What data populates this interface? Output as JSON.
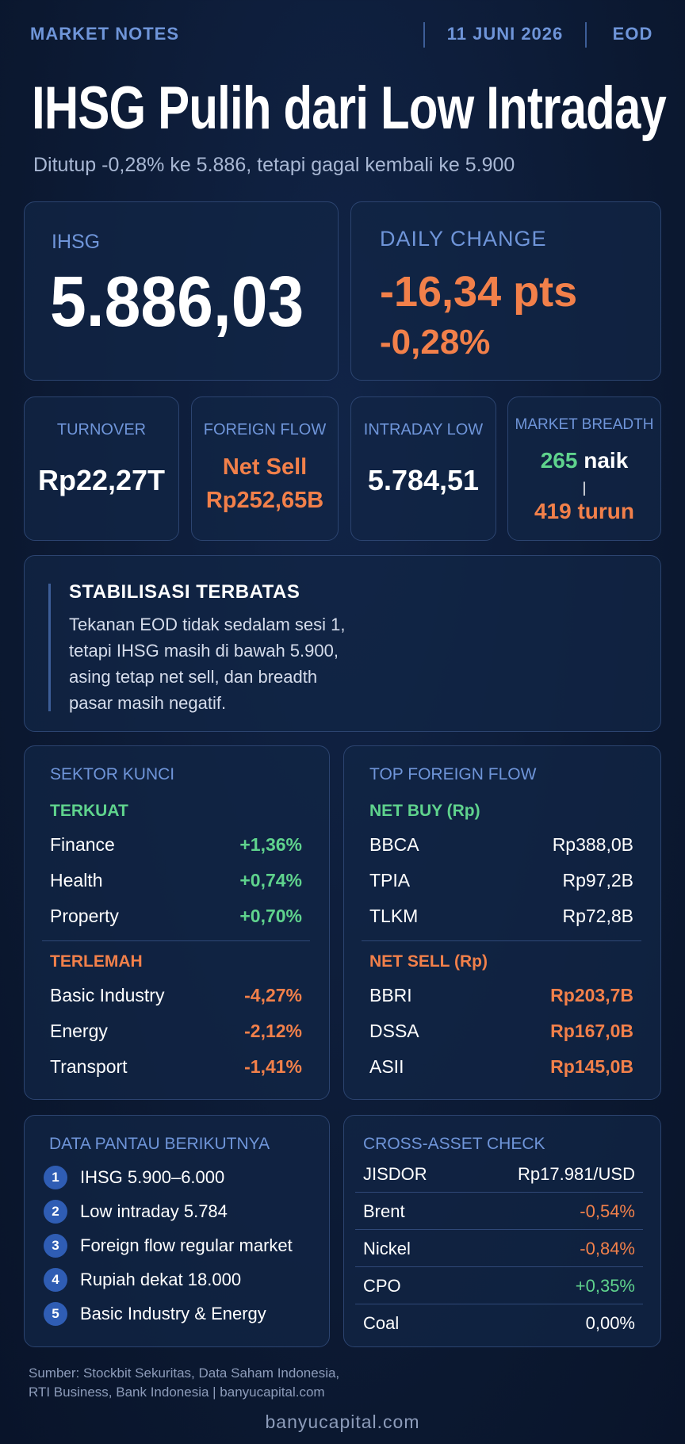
{
  "header": {
    "label": "MARKET NOTES",
    "date": "11 JUNI 2026",
    "tag": "EOD",
    "title": "IHSG Pulih dari Low Intraday",
    "subtitle": "Ditutup -0,28% ke 5.886, tetapi gagal kembali ke 5.900"
  },
  "index": {
    "label": "IHSG",
    "value": "5.886,03"
  },
  "change": {
    "label": "DAILY CHANGE",
    "points": "-16,34 pts",
    "percent": "-0,28%"
  },
  "stats": [
    {
      "label": "TURNOVER",
      "lines": [
        "Rp22,27T"
      ],
      "color": "#ffffff"
    },
    {
      "label": "FOREIGN FLOW",
      "lines": [
        "Net Sell",
        "Rp252,65B"
      ],
      "color": "#f2804a"
    },
    {
      "label": "INTRADAY LOW",
      "lines": [
        "5.784,51"
      ],
      "color": "#ffffff"
    }
  ],
  "breadth": {
    "label": "MARKET BREADTH",
    "up": "265",
    "up_text": "naik",
    "separator": "|",
    "down": "419 turun"
  },
  "note": {
    "title": "STABILISASI TERBATAS",
    "lines": [
      "Tekanan EOD tidak sedalam sesi 1,",
      "tetapi IHSG masih di bawah 5.900,",
      "asing tetap net sell, dan breadth",
      "pasar masih negatif."
    ]
  },
  "sectors": {
    "title": "SEKTOR KUNCI",
    "groups": [
      {
        "label": "TERKUAT",
        "color": "#5fd38d",
        "rows": [
          [
            "Finance",
            "+1,36%"
          ],
          [
            "Health",
            "+0,74%"
          ],
          [
            "Property",
            "+0,70%"
          ]
        ]
      },
      {
        "label": "TERLEMAH",
        "color": "#f2804a",
        "rows": [
          [
            "Basic Industry",
            "-4,27%"
          ],
          [
            "Energy",
            "-2,12%"
          ],
          [
            "Transport",
            "-1,41%"
          ]
        ]
      }
    ]
  },
  "foreign": {
    "title": "TOP FOREIGN FLOW",
    "groups": [
      {
        "label": "NET BUY (Rp)",
        "color": "#5fd38d",
        "value_color": "#ffffff",
        "rows": [
          [
            "BBCA",
            "Rp388,0B"
          ],
          [
            "TPIA",
            "Rp97,2B"
          ],
          [
            "TLKM",
            "Rp72,8B"
          ]
        ]
      },
      {
        "label": "NET SELL (Rp)",
        "color": "#f2804a",
        "value_color": "#f2804a",
        "rows": [
          [
            "BBRI",
            "Rp203,7B"
          ],
          [
            "DSSA",
            "Rp167,0B"
          ],
          [
            "ASII",
            "Rp145,0B"
          ]
        ]
      }
    ]
  },
  "watchlist": {
    "title": "DATA PANTAU BERIKUTNYA",
    "items": [
      {
        "number": "1",
        "text": "IHSG 5.900–6.000"
      },
      {
        "number": "2",
        "text": "Low intraday 5.784"
      },
      {
        "number": "3",
        "text": "Foreign flow regular market"
      },
      {
        "number": "4",
        "text": "Rupiah dekat 18.000"
      },
      {
        "number": "5",
        "text": "Basic Industry & Energy"
      }
    ]
  },
  "cross_asset": {
    "title": "CROSS-ASSET CHECK",
    "rows": [
      [
        "JISDOR",
        "Rp17.981/USD"
      ],
      [
        "Brent",
        "-0,54%"
      ],
      [
        "Nickel",
        "-0,84%"
      ],
      [
        "CPO",
        "+0,35%"
      ],
      [
        "Coal",
        "0,00%"
      ]
    ]
  },
  "footer": {
    "source": [
      "Sumber: Stockbit Sekuritas, Data Saham Indonesia,",
      "RTI Business, Bank Indonesia  |  banyucapital.com"
    ],
    "site": "banyucapital.com"
  }
}
